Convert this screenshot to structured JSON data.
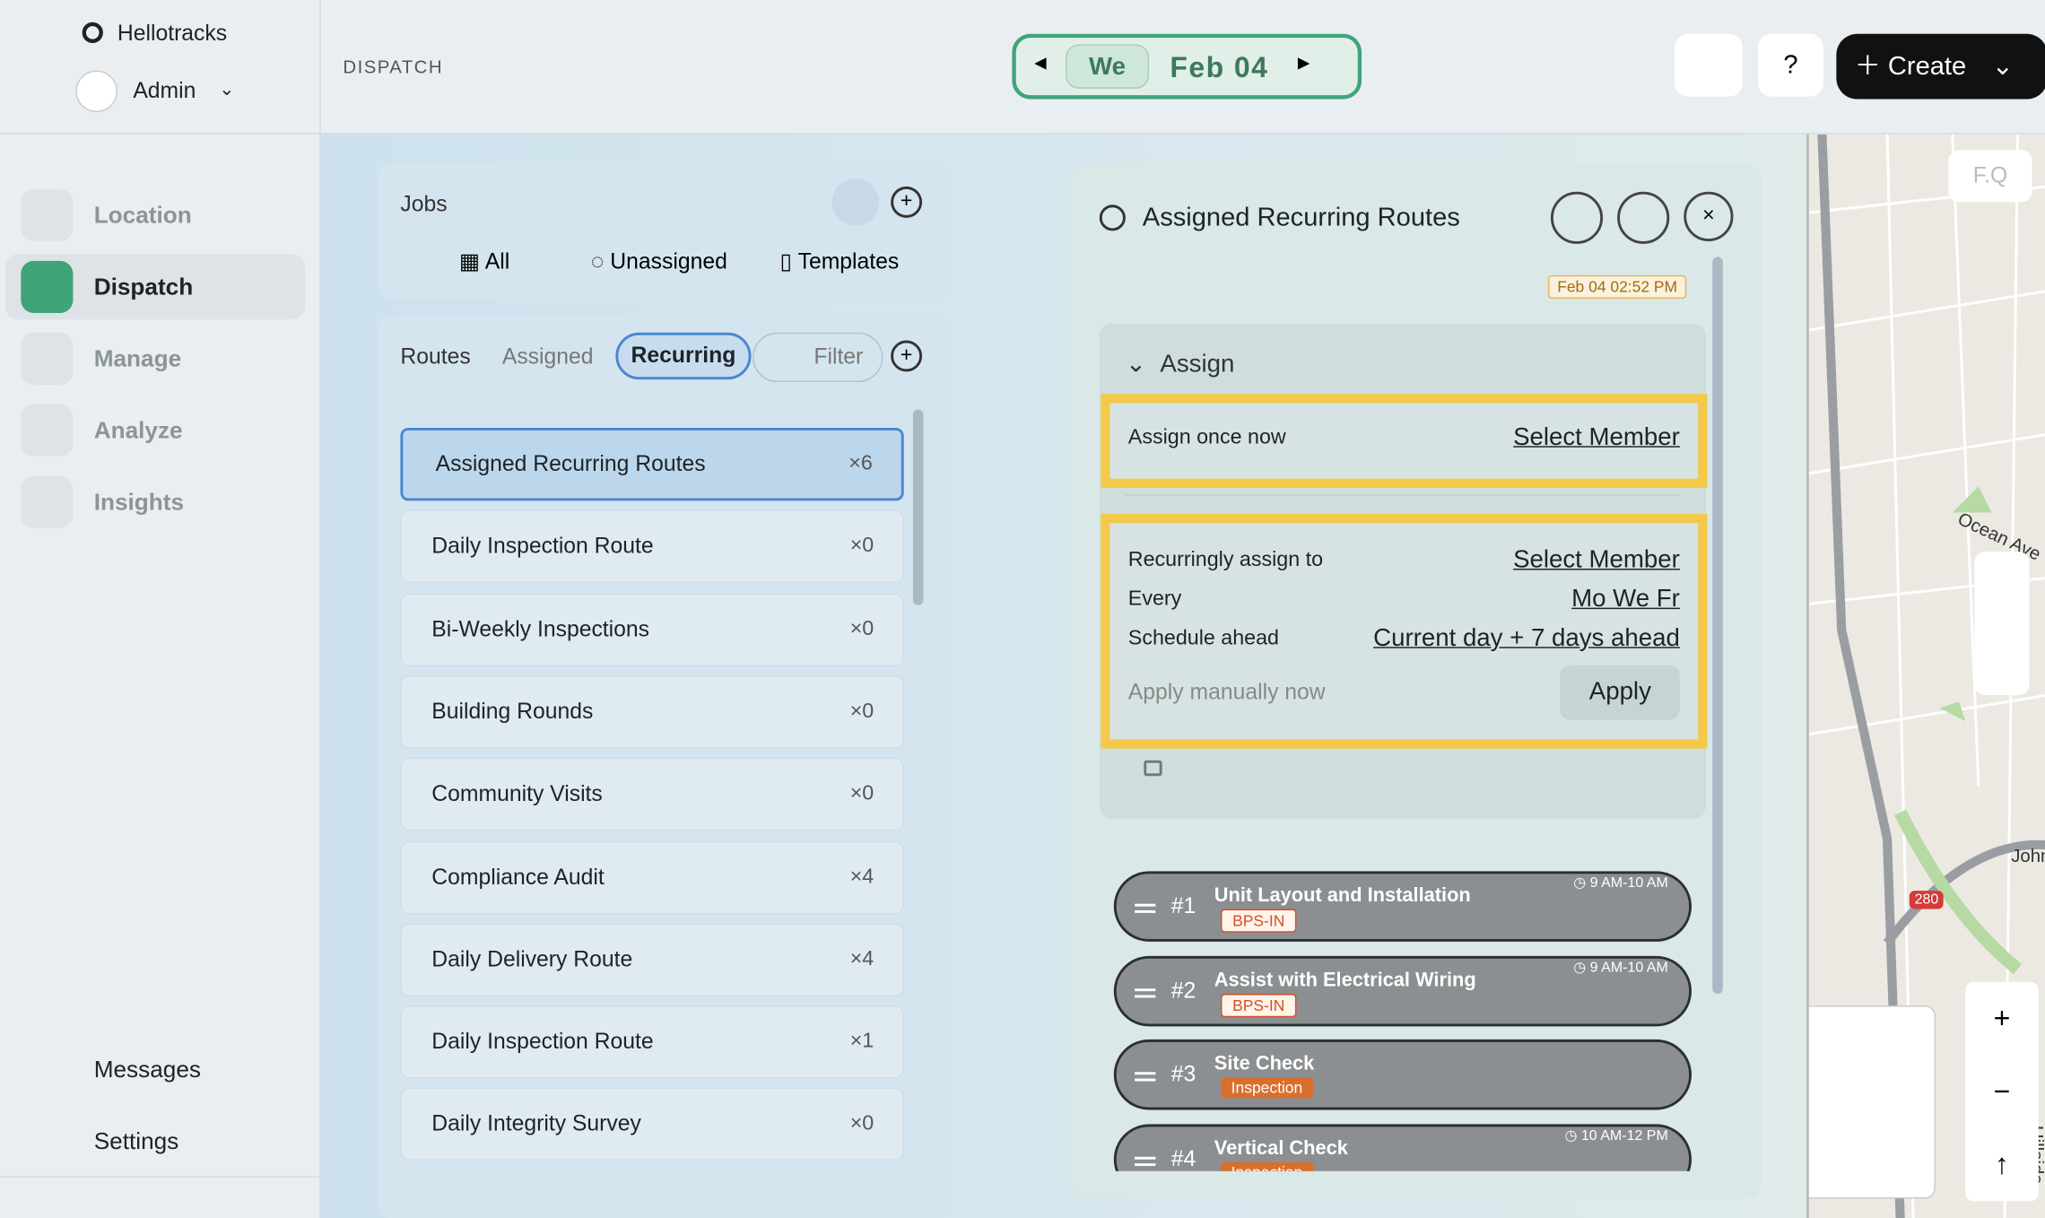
{
  "app": {
    "brand": "Hellotracks",
    "user": "Admin"
  },
  "nav": [
    "Location",
    "Dispatch",
    "Manage",
    "Analyze",
    "Insights"
  ],
  "nav_bottom": [
    "Messages",
    "Settings"
  ],
  "header": {
    "section": "DISPATCH",
    "day": "We",
    "date": "Feb 04",
    "help": "?",
    "create": "Create"
  },
  "jobs": {
    "title": "Jobs",
    "tabs": [
      "All",
      "Unassigned",
      "Templates"
    ]
  },
  "routes": {
    "tabs": [
      "Routes",
      "Assigned",
      "Recurring"
    ],
    "filter": "Filter",
    "items": [
      {
        "name": "Assigned Recurring Routes",
        "count": "×6"
      },
      {
        "name": "Daily Inspection Route",
        "count": "×0"
      },
      {
        "name": "Bi-Weekly Inspections",
        "count": "×0"
      },
      {
        "name": "Building Rounds",
        "count": "×0"
      },
      {
        "name": "Community Visits",
        "count": "×0"
      },
      {
        "name": "Compliance Audit",
        "count": "×4"
      },
      {
        "name": "Daily Delivery Route",
        "count": "×4"
      },
      {
        "name": "Daily Inspection Route",
        "count": "×1"
      },
      {
        "name": "Daily Integrity Survey",
        "count": "×0"
      }
    ]
  },
  "detail": {
    "title": "Assigned Recurring Routes",
    "timestamp": "Feb 04 02:52 PM",
    "section": "Assign",
    "once_label": "Assign once now",
    "once_action": "Select Member",
    "rows": [
      {
        "label": "Recurringly assign to",
        "value": "Select Member"
      },
      {
        "label": "Every",
        "value": "Mo We Fr"
      },
      {
        "label": "Schedule ahead",
        "value": "Current day + 7 days ahead"
      }
    ],
    "apply_label": "Apply manually now",
    "apply": "Apply"
  },
  "stops": [
    {
      "num": "#1",
      "title": "Unit Layout and Installation",
      "tag": "BPS-IN",
      "time": "9 AM-10 AM"
    },
    {
      "num": "#2",
      "title": "Assist with Electrical Wiring",
      "tag": "BPS-IN",
      "time": "9 AM-10 AM"
    },
    {
      "num": "#3",
      "title": "Site Check",
      "tag": "Inspection"
    },
    {
      "num": "#4",
      "title": "Vertical Check",
      "tag": "Inspection",
      "time": "10 AM-12 PM"
    }
  ],
  "map": {
    "search": "F.Q",
    "labels": [
      "Ocean Ave",
      "280",
      "John",
      "Hillside Blvd"
    ]
  }
}
